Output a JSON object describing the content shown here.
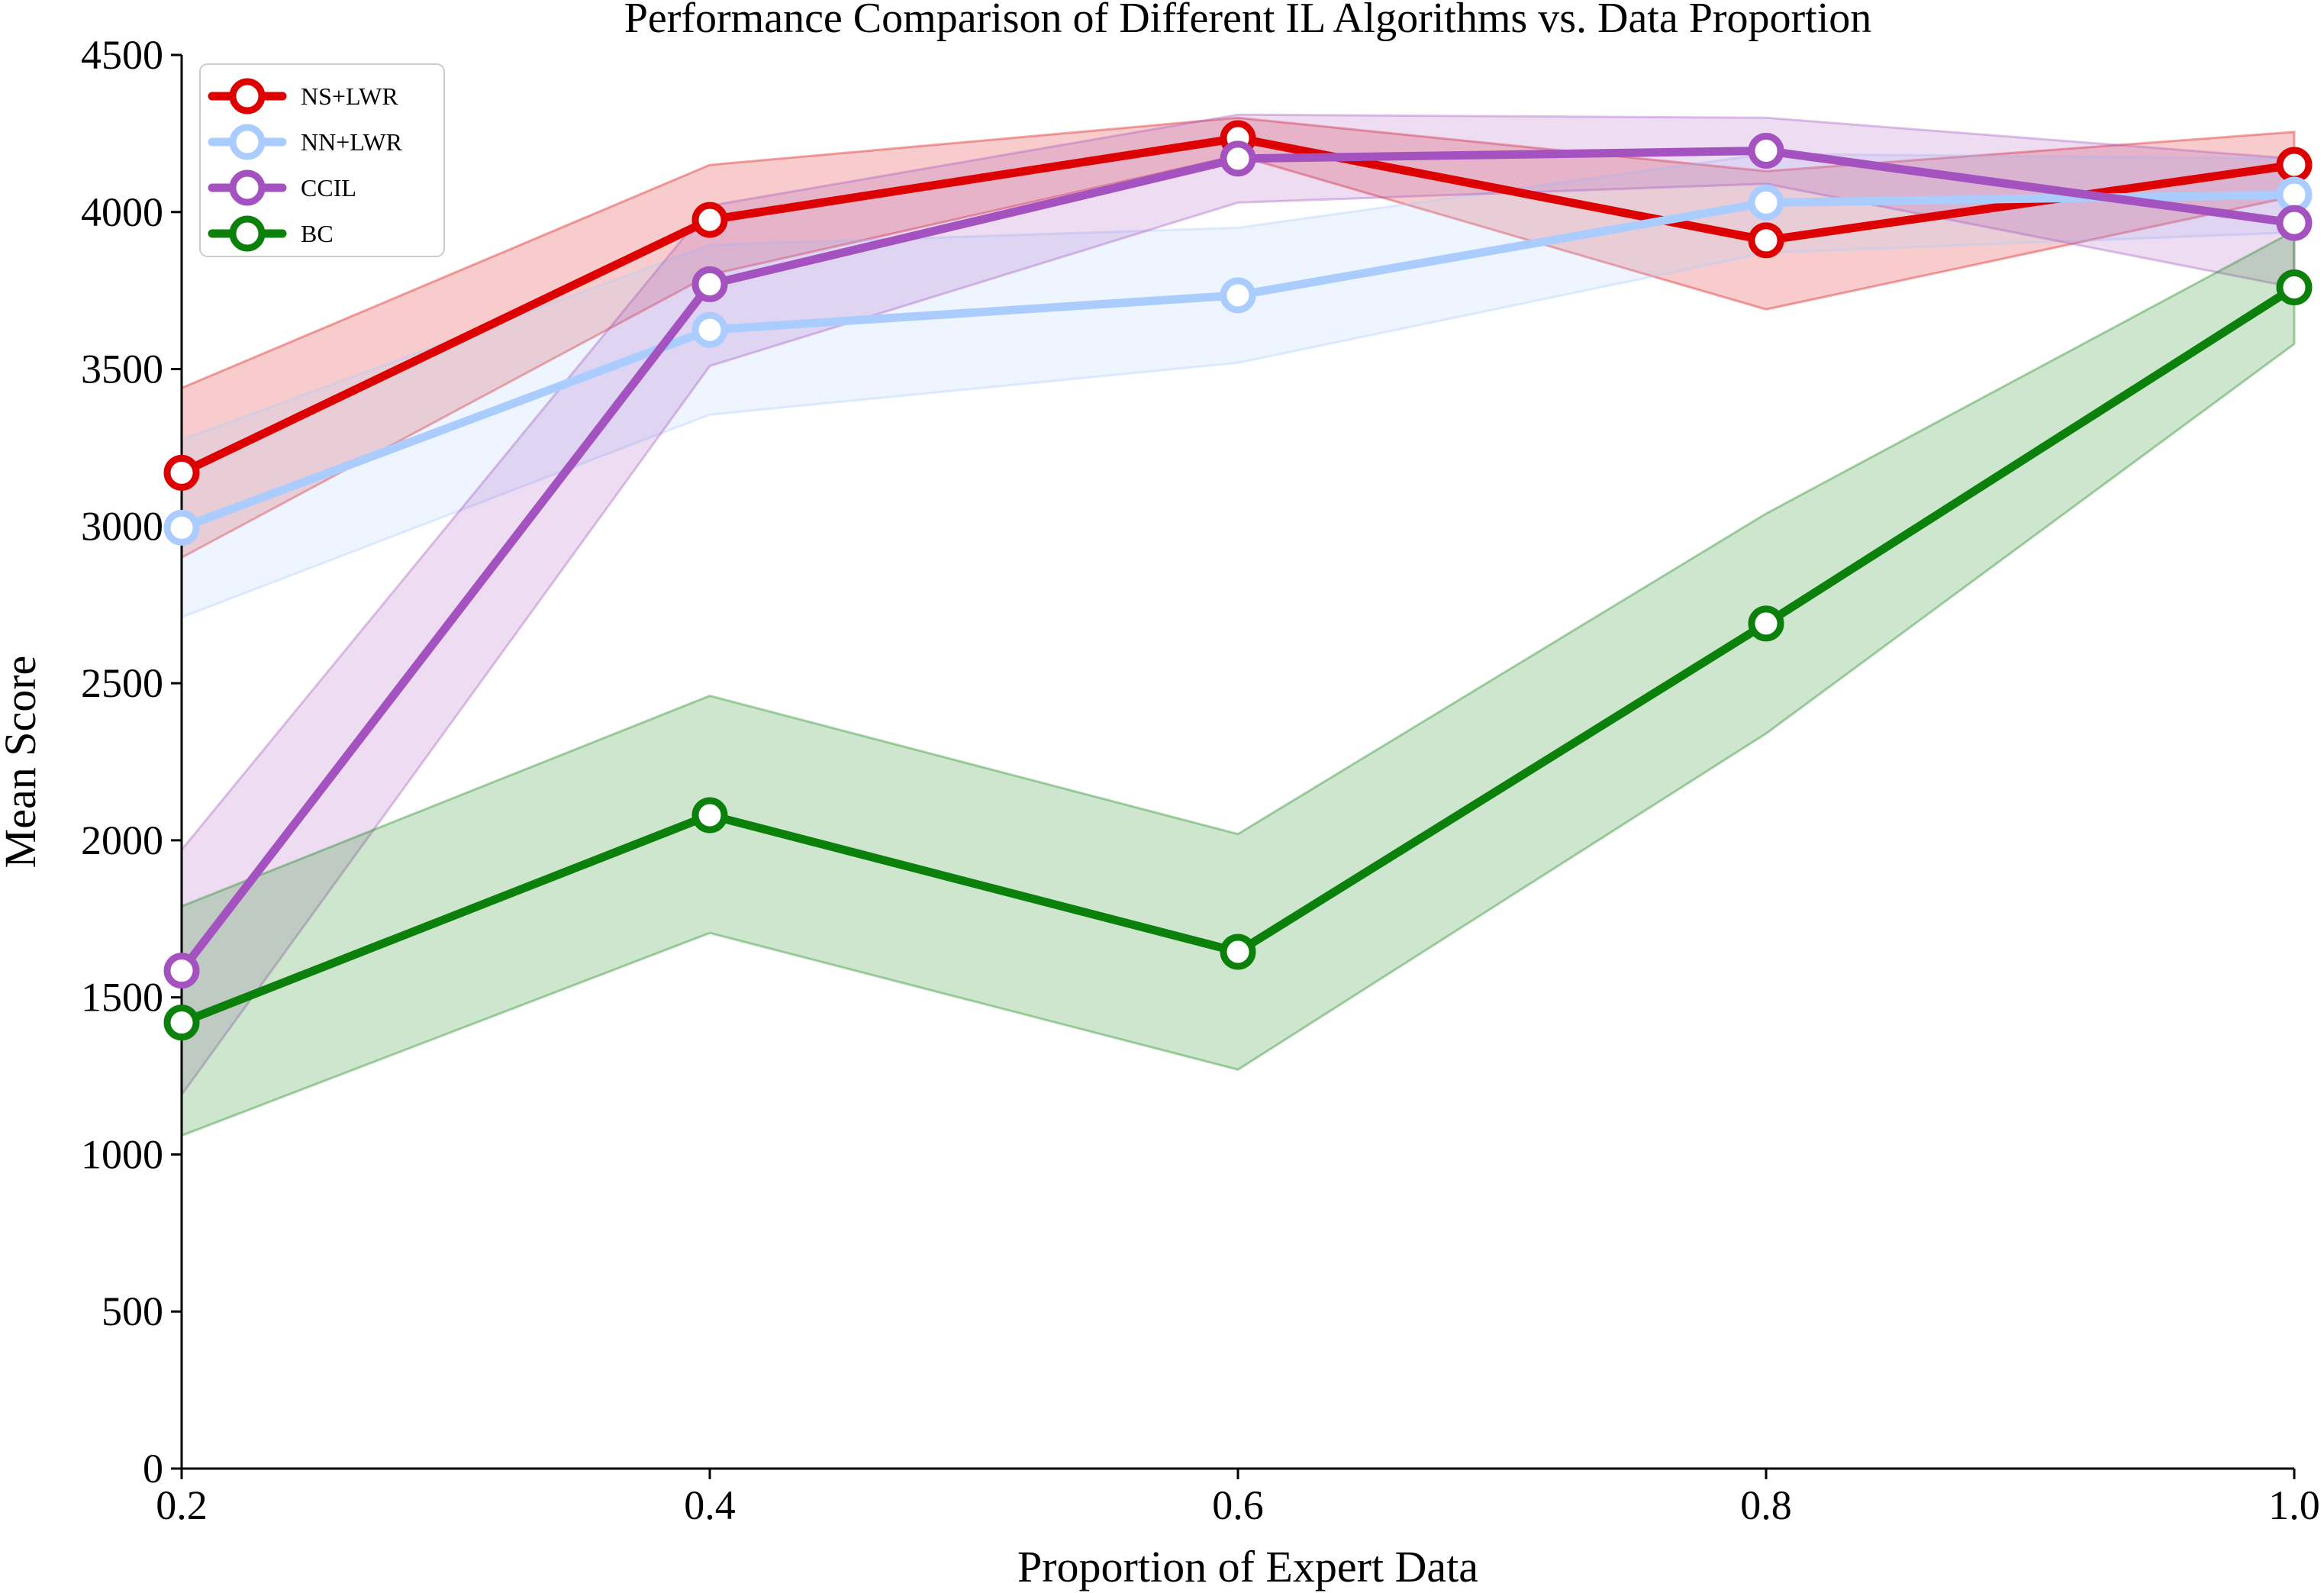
{
  "chart_data": {
    "type": "line",
    "title": "Performance Comparison of Different IL Algorithms vs. Data Proportion",
    "xlabel": "Proportion of Expert Data",
    "ylabel": "Mean Score",
    "x": [
      0.2,
      0.4,
      0.6,
      0.8,
      1.0
    ],
    "x_tick_labels": [
      "0.2",
      "0.4",
      "0.6",
      "0.8",
      "1.0"
    ],
    "xlim": [
      0.2,
      1.0
    ],
    "ylim": [
      0,
      4500
    ],
    "y_ticks": [
      0,
      500,
      1000,
      1500,
      2000,
      2500,
      3000,
      3500,
      4000,
      4500
    ],
    "y_tick_labels": [
      "0",
      "500",
      "1000",
      "1500",
      "2000",
      "2500",
      "3000",
      "3500",
      "4000",
      "4500"
    ],
    "grid": false,
    "legend_position": "top-left",
    "series": [
      {
        "name": "NS+LWR",
        "color": "#dd0000",
        "values": [
          3170,
          3975,
          4235,
          3910,
          4150
        ],
        "lower": [
          2900,
          3800,
          4180,
          3690,
          4050
        ],
        "upper": [
          3440,
          4150,
          4300,
          4130,
          4255
        ]
      },
      {
        "name": "NN+LWR",
        "color": "#aaccff",
        "values": [
          2995,
          3625,
          3735,
          4030,
          4055
        ],
        "lower": [
          2710,
          3355,
          3520,
          3870,
          3935
        ],
        "upper": [
          3275,
          3895,
          3950,
          4185,
          4170
        ]
      },
      {
        "name": "CCIL",
        "color": "#a352bf",
        "values": [
          1585,
          3770,
          4170,
          4195,
          3965
        ],
        "lower": [
          1190,
          3510,
          4030,
          4090,
          3760
        ],
        "upper": [
          1970,
          4020,
          4310,
          4300,
          4170
        ]
      },
      {
        "name": "BC",
        "color": "#0b810b",
        "values": [
          1420,
          2080,
          1645,
          2690,
          3760
        ],
        "lower": [
          1060,
          1705,
          1270,
          2340,
          3580
        ],
        "upper": [
          1790,
          2460,
          2020,
          3040,
          3940
        ]
      }
    ]
  }
}
